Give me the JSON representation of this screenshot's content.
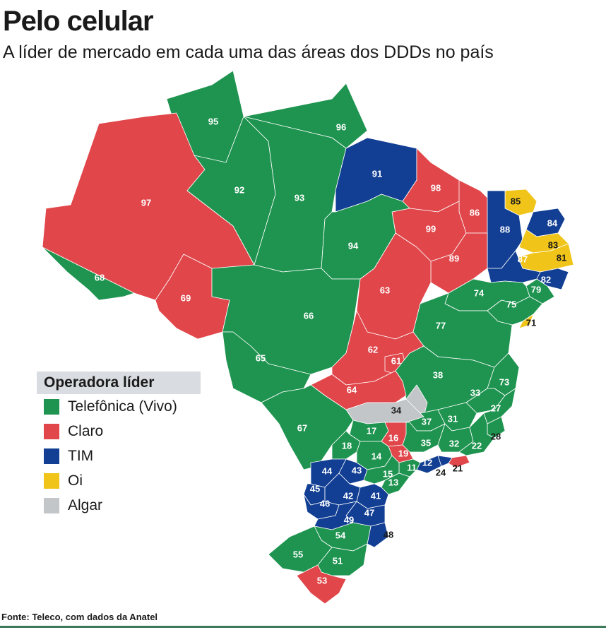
{
  "header": {
    "title": "Pelo celular",
    "subtitle": "A líder de mercado em cada uma das áreas dos DDDs no país"
  },
  "legend": {
    "title": "Operadora líder",
    "items": [
      {
        "label": "Telefônica (Vivo)",
        "color": "#1f9450"
      },
      {
        "label": "Claro",
        "color": "#e0464a"
      },
      {
        "label": "TIM",
        "color": "#123f94"
      },
      {
        "label": "Oi",
        "color": "#f0c419"
      },
      {
        "label": "Algar",
        "color": "#c3c6c9"
      }
    ]
  },
  "regions": [
    {
      "ddd": "95",
      "operator": "Telefônica (Vivo)"
    },
    {
      "ddd": "96",
      "operator": "Telefônica (Vivo)"
    },
    {
      "ddd": "97",
      "operator": "Claro"
    },
    {
      "ddd": "92",
      "operator": "Telefônica (Vivo)"
    },
    {
      "ddd": "93",
      "operator": "Telefônica (Vivo)"
    },
    {
      "ddd": "91",
      "operator": "TIM"
    },
    {
      "ddd": "98",
      "operator": "Claro"
    },
    {
      "ddd": "85",
      "operator": "Oi"
    },
    {
      "ddd": "86",
      "operator": "Claro"
    },
    {
      "ddd": "88",
      "operator": "TIM"
    },
    {
      "ddd": "84",
      "operator": "TIM"
    },
    {
      "ddd": "83",
      "operator": "Oi"
    },
    {
      "ddd": "81",
      "operator": "Oi"
    },
    {
      "ddd": "99",
      "operator": "Claro"
    },
    {
      "ddd": "94",
      "operator": "Telefônica (Vivo)"
    },
    {
      "ddd": "89",
      "operator": "Claro"
    },
    {
      "ddd": "87",
      "operator": "TIM"
    },
    {
      "ddd": "82",
      "operator": "TIM"
    },
    {
      "ddd": "79",
      "operator": "Telefônica (Vivo)"
    },
    {
      "ddd": "68",
      "operator": "Telefônica (Vivo)"
    },
    {
      "ddd": "69",
      "operator": "Claro"
    },
    {
      "ddd": "66",
      "operator": "Telefônica (Vivo)"
    },
    {
      "ddd": "63",
      "operator": "Claro"
    },
    {
      "ddd": "74",
      "operator": "Telefônica (Vivo)"
    },
    {
      "ddd": "75",
      "operator": "Telefônica (Vivo)"
    },
    {
      "ddd": "71",
      "operator": "Oi"
    },
    {
      "ddd": "77",
      "operator": "Telefônica (Vivo)"
    },
    {
      "ddd": "65",
      "operator": "Telefônica (Vivo)"
    },
    {
      "ddd": "62",
      "operator": "Claro"
    },
    {
      "ddd": "61",
      "operator": "Claro"
    },
    {
      "ddd": "38",
      "operator": "Telefônica (Vivo)"
    },
    {
      "ddd": "73",
      "operator": "Telefônica (Vivo)"
    },
    {
      "ddd": "64",
      "operator": "Claro"
    },
    {
      "ddd": "33",
      "operator": "Telefônica (Vivo)"
    },
    {
      "ddd": "34",
      "operator": "Algar"
    },
    {
      "ddd": "27",
      "operator": "Telefônica (Vivo)"
    },
    {
      "ddd": "67",
      "operator": "Telefônica (Vivo)"
    },
    {
      "ddd": "37",
      "operator": "Telefônica (Vivo)"
    },
    {
      "ddd": "31",
      "operator": "Telefônica (Vivo)"
    },
    {
      "ddd": "17",
      "operator": "Telefônica (Vivo)"
    },
    {
      "ddd": "16",
      "operator": "Claro"
    },
    {
      "ddd": "28",
      "operator": "Telefônica (Vivo)"
    },
    {
      "ddd": "18",
      "operator": "Telefônica (Vivo)"
    },
    {
      "ddd": "35",
      "operator": "Telefônica (Vivo)"
    },
    {
      "ddd": "32",
      "operator": "Telefônica (Vivo)"
    },
    {
      "ddd": "22",
      "operator": "Telefônica (Vivo)"
    },
    {
      "ddd": "19",
      "operator": "Claro"
    },
    {
      "ddd": "14",
      "operator": "Telefônica (Vivo)"
    },
    {
      "ddd": "12",
      "operator": "TIM"
    },
    {
      "ddd": "21",
      "operator": "Claro"
    },
    {
      "ddd": "11",
      "operator": "Telefônica (Vivo)"
    },
    {
      "ddd": "24",
      "operator": "TIM"
    },
    {
      "ddd": "44",
      "operator": "TIM"
    },
    {
      "ddd": "43",
      "operator": "TIM"
    },
    {
      "ddd": "15",
      "operator": "Telefônica (Vivo)"
    },
    {
      "ddd": "13",
      "operator": "Telefônica (Vivo)"
    },
    {
      "ddd": "45",
      "operator": "TIM"
    },
    {
      "ddd": "42",
      "operator": "TIM"
    },
    {
      "ddd": "41",
      "operator": "TIM"
    },
    {
      "ddd": "46",
      "operator": "TIM"
    },
    {
      "ddd": "47",
      "operator": "TIM"
    },
    {
      "ddd": "49",
      "operator": "TIM"
    },
    {
      "ddd": "48",
      "operator": "TIM"
    },
    {
      "ddd": "54",
      "operator": "Telefônica (Vivo)"
    },
    {
      "ddd": "55",
      "operator": "Telefônica (Vivo)"
    },
    {
      "ddd": "51",
      "operator": "Telefônica (Vivo)"
    },
    {
      "ddd": "53",
      "operator": "Claro"
    }
  ],
  "footer": {
    "source": "Fonte: Teleco, com dados da Anatel"
  }
}
